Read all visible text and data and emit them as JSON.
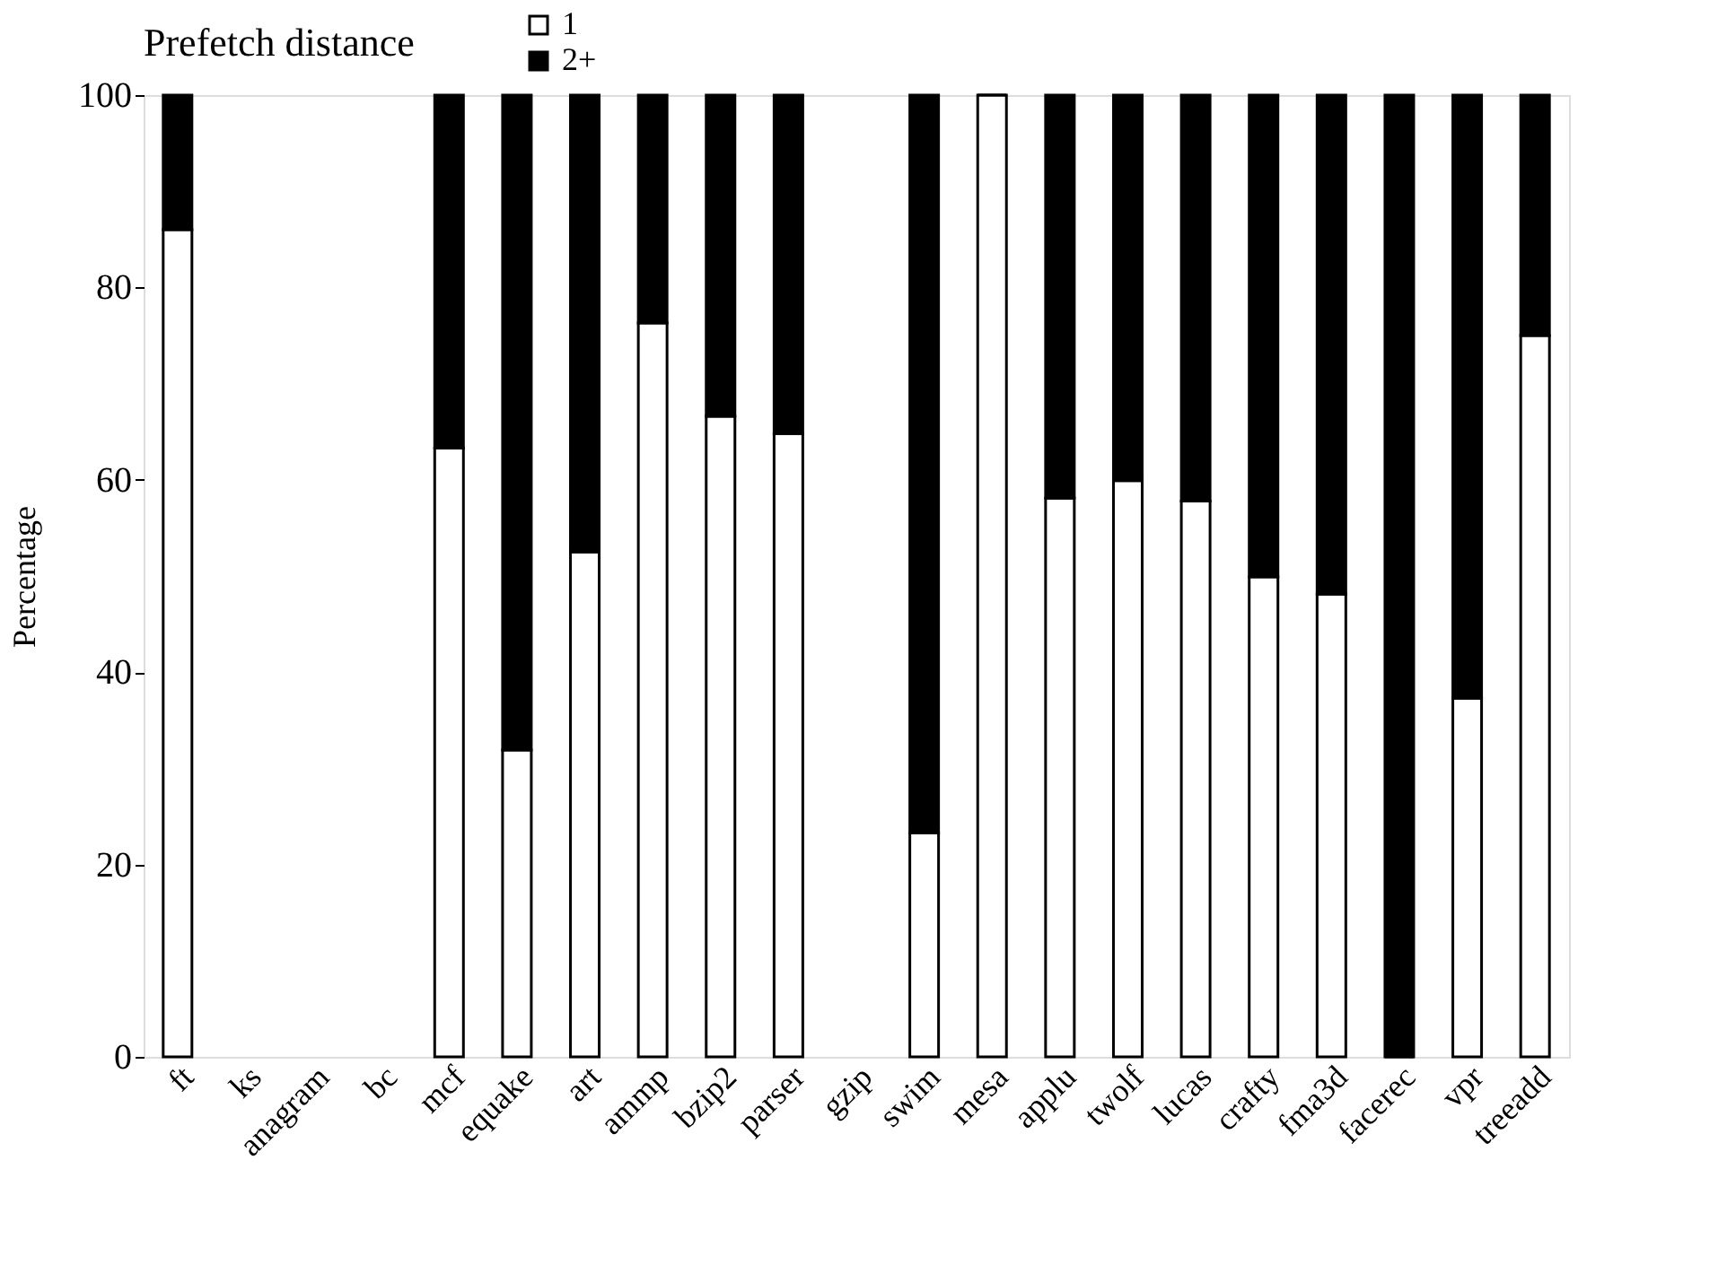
{
  "chart_data": {
    "type": "bar",
    "stacked": true,
    "ylabel": "Percentage",
    "legend_title": "Prefetch distance",
    "legend": "top",
    "grid": false,
    "categories": [
      "ft",
      "ks",
      "anagram",
      "bc",
      "mcf",
      "equake",
      "art",
      "ammp",
      "bzip2",
      "parser",
      "gzip",
      "swim",
      "mesa",
      "applu",
      "twolf",
      "lucas",
      "crafty",
      "fma3d",
      "facerec",
      "vpr",
      "treeadd"
    ],
    "ylim": [
      0,
      100
    ],
    "yticks": [
      0,
      20,
      40,
      60,
      80,
      100
    ],
    "series": [
      {
        "name": "1",
        "color": "#ffffff",
        "values": [
          86,
          null,
          null,
          null,
          63.3,
          31.9,
          52.5,
          76.3,
          66.6,
          64.8,
          null,
          23.3,
          100,
          58.1,
          59.9,
          57.8,
          49.9,
          48.1,
          0,
          37.3,
          75
        ]
      },
      {
        "name": "2+",
        "color": "#000000",
        "values": [
          14,
          null,
          null,
          null,
          36.7,
          68.1,
          47.5,
          23.7,
          33.4,
          35.2,
          null,
          76.7,
          0,
          41.9,
          40.1,
          42.2,
          50.1,
          51.9,
          100,
          62.7,
          25
        ]
      }
    ]
  }
}
